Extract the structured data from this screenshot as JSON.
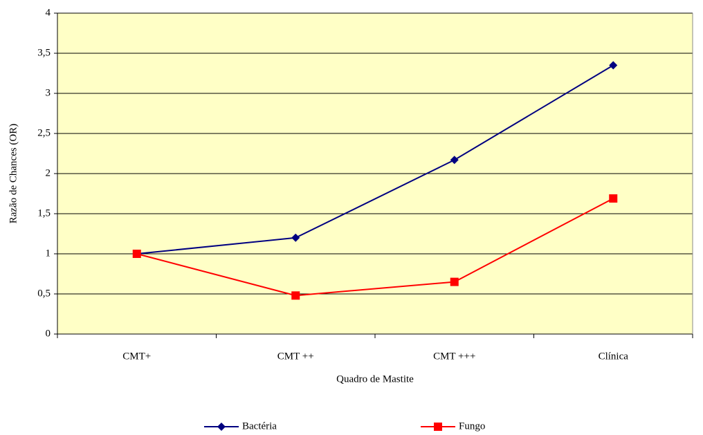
{
  "chart_data": {
    "type": "line",
    "x_label": "Quadro de Mastite",
    "y_label": "Razão de Chances (OR)",
    "categories": [
      "CMT+",
      "CMT ++",
      "CMT +++",
      "Clínica"
    ],
    "series": [
      {
        "name": "Bactéria",
        "color": "#000080",
        "marker": "diamond",
        "values": [
          1,
          1.2,
          2.17,
          3.35
        ]
      },
      {
        "name": "Fungo",
        "color": "#ff0000",
        "marker": "square",
        "values": [
          1,
          0.48,
          0.65,
          1.69
        ]
      }
    ],
    "ylim": [
      0,
      4
    ],
    "yticks": [
      0,
      {
        "value": 0.5,
        "label": "0,5"
      },
      1,
      {
        "value": 1.5,
        "label": "1,5"
      },
      2,
      {
        "value": 2.5,
        "label": "2,5"
      },
      3,
      {
        "value": 3.5,
        "label": "3,5"
      },
      4
    ],
    "grid": true,
    "plot_background": "#ffffc6",
    "legend": "bottom"
  }
}
